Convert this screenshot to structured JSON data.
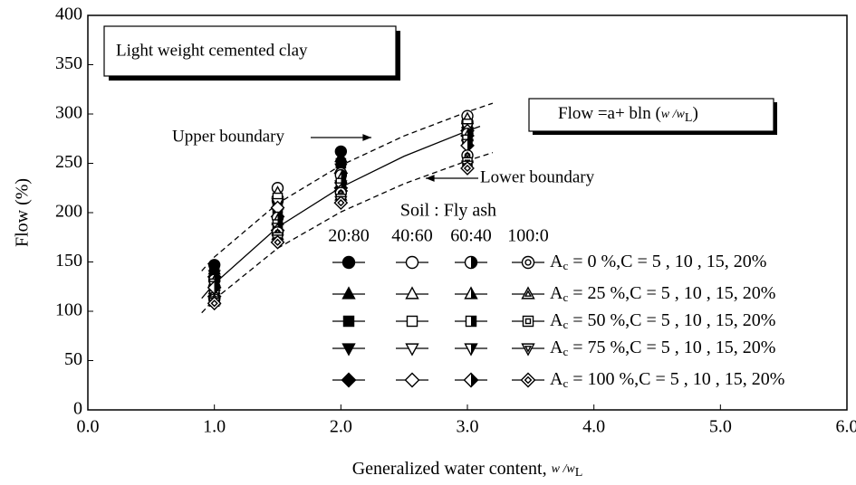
{
  "chart_data": {
    "type": "scatter",
    "xlabel": [
      "Generalized water content, ",
      "w /w",
      "L"
    ],
    "ylabel": "Flow (%)",
    "xlim": [
      0,
      6
    ],
    "ylim": [
      0,
      400
    ],
    "xticks": [
      {
        "value": 0,
        "label": "0.0"
      },
      {
        "value": 1,
        "label": "1.0"
      },
      {
        "value": 2,
        "label": "2.0"
      },
      {
        "value": 3,
        "label": "3.0"
      },
      {
        "value": 4,
        "label": "4.0"
      },
      {
        "value": 5,
        "label": "5.0"
      },
      {
        "value": 6,
        "label": "6.0"
      }
    ],
    "yticks": [
      0,
      50,
      100,
      150,
      200,
      250,
      300,
      350,
      400
    ],
    "x": [
      1,
      1.5,
      2,
      3
    ],
    "markers": [
      "circle",
      "triangle",
      "square",
      "triangle-down",
      "diamond"
    ],
    "color": "#000000",
    "series": [
      {
        "name": "20:80",
        "fill": "solid",
        "values": [
          [
            147,
            212,
            262,
            292
          ],
          [
            142,
            208,
            256,
            288
          ],
          [
            140,
            204,
            250,
            285
          ],
          [
            137,
            200,
            245,
            282
          ],
          [
            135,
            196,
            240,
            278
          ]
        ]
      },
      {
        "name": "40:60",
        "fill": "open",
        "values": [
          [
            125,
            225,
            240,
            298
          ],
          [
            122,
            220,
            235,
            295
          ],
          [
            120,
            215,
            232,
            290
          ],
          [
            117,
            210,
            228,
            286
          ],
          [
            115,
            205,
            225,
            283
          ]
        ]
      },
      {
        "name": "60:40",
        "fill": "half",
        "values": [
          [
            132,
            195,
            238,
            280
          ],
          [
            130,
            192,
            234,
            277
          ],
          [
            128,
            188,
            230,
            274
          ],
          [
            126,
            185,
            226,
            270
          ],
          [
            124,
            182,
            222,
            268
          ]
        ]
      },
      {
        "name": "100:0",
        "fill": "dotted",
        "values": [
          [
            112,
            180,
            220,
            258
          ],
          [
            111,
            177,
            217,
            255
          ],
          [
            110,
            175,
            214,
            251
          ],
          [
            109,
            173,
            212,
            248
          ],
          [
            108,
            170,
            210,
            245
          ]
        ]
      }
    ],
    "legend": {
      "title": "Soil : Fly ash",
      "symbol": "A",
      "subscript": "c",
      "rows": [
        " = 0 %,C = 5 , 10 , 15, 20%",
        " = 25 %,C = 5 , 10 , 15, 20%",
        " = 50 %,C = 5 , 10 , 15, 20%",
        " = 75 %,C = 5 , 10 , 15, 20%",
        " = 100 %,C = 5 , 10 , 15, 20%"
      ]
    },
    "curves": [
      {
        "style": "solid",
        "x": [
          0.9,
          1,
          1.5,
          2,
          2.5,
          3,
          3.1
        ],
        "values": [
          113.1,
          128,
          185.2,
          225.7,
          257.2,
          282.9,
          287.5
        ]
      },
      {
        "style": "dashed",
        "x": [
          0.9,
          1,
          1.5,
          2,
          2.5,
          3,
          3.2
        ],
        "values": [
          140.9,
          155,
          209.3,
          247.9,
          277.8,
          302.2,
          310.9
        ]
      },
      {
        "style": "dashed",
        "x": [
          0.9,
          1,
          1.5,
          2,
          2.5,
          3,
          3.2
        ],
        "values": [
          98.5,
          112,
          163.9,
          200.7,
          229.3,
          252.6,
          260.9
        ]
      }
    ],
    "annotations": {
      "box_title": "Light weight cemented clay",
      "formula": [
        "Flow =a+ bln (",
        "w /w",
        "L",
        ")"
      ],
      "upper": "Upper boundary",
      "lower": "Lower boundary"
    }
  }
}
